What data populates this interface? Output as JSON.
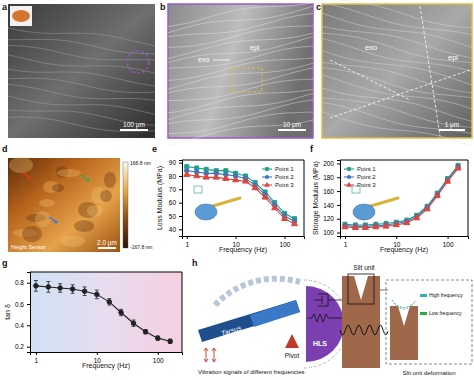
{
  "chart_data": [
    {
      "type": "line",
      "x_label": "Frequency (Hz)",
      "y_label": "Loss Modulus (MPa)",
      "x": [
        1,
        1.6,
        2.5,
        4,
        6.3,
        10,
        16,
        25,
        40,
        63,
        100,
        160
      ],
      "log": "x",
      "xlim": [
        0.8,
        250
      ],
      "xticks": [
        1,
        10,
        100
      ],
      "ylim": [
        35,
        92
      ],
      "yticks": [
        40,
        50,
        60,
        70,
        80,
        90
      ],
      "legend": "upper right",
      "series": [
        {
          "name": "Point 1",
          "color": "#1f9e89",
          "marker": "square",
          "values": [
            87,
            86,
            85,
            84,
            84,
            82,
            80,
            75,
            68,
            60,
            52,
            48
          ]
        },
        {
          "name": "Point 2",
          "color": "#3b78c2",
          "marker": "circle",
          "values": [
            84,
            83,
            82,
            82,
            81,
            80,
            78,
            73,
            66,
            58,
            50,
            46
          ]
        },
        {
          "name": "Point 3",
          "color": "#d9473f",
          "marker": "triangle",
          "values": [
            81,
            80,
            79,
            79,
            78,
            77,
            76,
            71,
            64,
            56,
            48,
            44
          ]
        }
      ]
    },
    {
      "type": "line",
      "x_label": "Frequency (Hz)",
      "y_label": "Storage Modulus (MPa)",
      "x": [
        1,
        1.6,
        2.5,
        4,
        6.3,
        10,
        16,
        25,
        40,
        63,
        100,
        160
      ],
      "log": "x",
      "xlim": [
        0.8,
        250
      ],
      "xticks": [
        1,
        10,
        100
      ],
      "ylim": [
        95,
        205
      ],
      "yticks": [
        100,
        120,
        140,
        160,
        180,
        200
      ],
      "legend": "upper left",
      "series": [
        {
          "name": "Point 1",
          "color": "#1f9e89",
          "marker": "square",
          "values": [
            112,
            111,
            111,
            112,
            113,
            115,
            118,
            125,
            138,
            157,
            178,
            197
          ]
        },
        {
          "name": "Point 2",
          "color": "#3b78c2",
          "marker": "circle",
          "values": [
            110,
            109,
            109,
            110,
            111,
            113,
            116,
            123,
            136,
            155,
            176,
            195
          ]
        },
        {
          "name": "Point 3",
          "color": "#d9473f",
          "marker": "triangle",
          "values": [
            108,
            107,
            107,
            108,
            109,
            111,
            114,
            121,
            134,
            153,
            174,
            193
          ]
        }
      ]
    },
    {
      "type": "line",
      "x_label": "Frequency (Hz)",
      "y_label": "tan δ",
      "x": [
        1,
        1.6,
        2.5,
        4,
        6.3,
        10,
        16,
        25,
        40,
        63,
        100,
        160
      ],
      "log": "x",
      "xlim": [
        0.8,
        250
      ],
      "xticks": [
        1,
        10,
        100
      ],
      "ylim": [
        0.15,
        0.9
      ],
      "yticks": [
        0.2,
        0.4,
        0.6,
        0.8
      ],
      "color": "#222222",
      "marker": "circle",
      "values": [
        0.77,
        0.76,
        0.75,
        0.74,
        0.72,
        0.69,
        0.62,
        0.52,
        0.42,
        0.34,
        0.28,
        0.25
      ],
      "errors": [
        0.05,
        0.05,
        0.04,
        0.04,
        0.04,
        0.04,
        0.03,
        0.03,
        0.03,
        0.02,
        0.02,
        0.02
      ]
    }
  ],
  "figure": {
    "panel_labels": [
      "a",
      "b",
      "c",
      "d",
      "e",
      "f",
      "g",
      "h"
    ],
    "sem_images": [
      {
        "scale_bar": "100 μm"
      },
      {
        "labels": [
          "exo",
          "epi"
        ],
        "scale_bar": "10 μm"
      },
      {
        "labels": [
          "exo",
          "epi"
        ],
        "scale_bar": "1 μm"
      }
    ],
    "afm_image": {
      "colorbar_max": "168.8 nm",
      "colorbar_min": "-167.8 nm",
      "channel": "Height Sensor",
      "scale_bar": "2.0 μm"
    },
    "diagram": {
      "tarsus": "Tarsus",
      "signal": "Vibration signals of different frequencies",
      "pivot": "Pivot",
      "hls": "HLS",
      "slit": "Slit unit",
      "deformation": "Slit unit deformation",
      "high": "High frequency",
      "low": "Low frequency"
    }
  }
}
